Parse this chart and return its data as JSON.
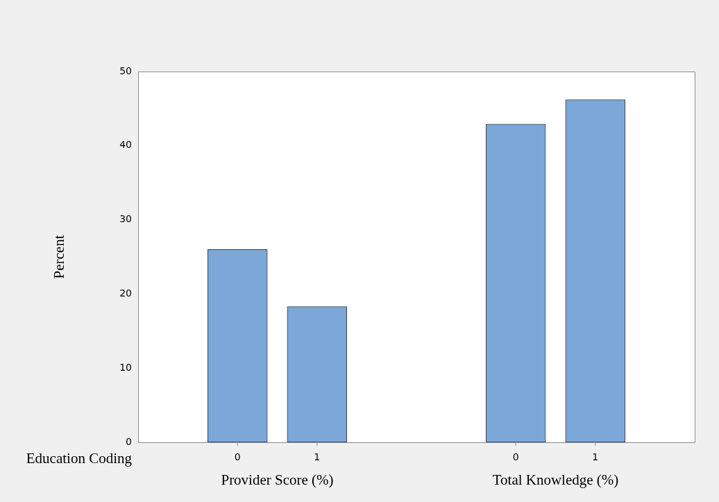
{
  "chart_data": {
    "type": "bar",
    "ylabel": "Percent",
    "xlabel": "Education Coding",
    "categories": [
      "0",
      "1",
      "0",
      "1"
    ],
    "values": [
      26.0,
      18.3,
      42.9,
      46.2
    ],
    "color": "#7ba7d9",
    "annotations": [
      "Provider Score (%)",
      "Total Knowledge (%)"
    ],
    "ylim": [
      0,
      50
    ],
    "yticks": [
      0,
      10,
      20,
      30,
      40,
      50
    ],
    "grid": false,
    "legend": false
  }
}
